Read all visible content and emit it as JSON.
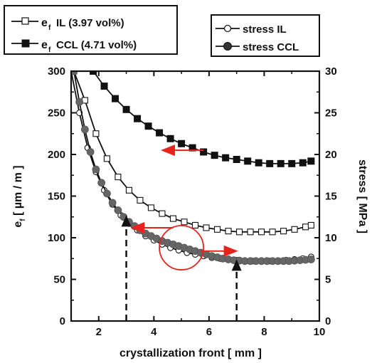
{
  "chart_data": {
    "type": "line",
    "xlabel": "crystallization front  [ mm ]",
    "ylabel_left": "e_f [ µm / m ]",
    "ylabel_right": "stress  [ MPa ]",
    "xlim": [
      1,
      10
    ],
    "ylim_left": [
      0,
      300
    ],
    "ylim_right": [
      0,
      30
    ],
    "xticks": [
      "2",
      "4",
      "6",
      "8",
      "10"
    ],
    "yticks_left": [
      "0",
      "50",
      "100",
      "150",
      "200",
      "250",
      "300"
    ],
    "yticks_right": [
      "0",
      "5",
      "10",
      "15",
      "20",
      "25",
      "30"
    ],
    "legend_left": [
      {
        "key": "ef_il",
        "text": "IL (3.97 vol%)"
      },
      {
        "key": "ef_ccl",
        "text": "CCL (4.71 vol%)"
      }
    ],
    "legend_right": [
      {
        "key": "stress_il",
        "text": "stress IL"
      },
      {
        "key": "stress_ccl",
        "text": "stress CCL"
      }
    ],
    "legend_symbol": {
      "main": "e",
      "sub": "f"
    },
    "series": [
      {
        "key": "ef_ccl",
        "axis": "left",
        "marker": "filled-square",
        "color": "#111111",
        "points": [
          [
            1.8,
            300
          ],
          [
            2.2,
            282
          ],
          [
            2.6,
            267
          ],
          [
            3.0,
            254
          ],
          [
            3.4,
            243
          ],
          [
            3.8,
            234
          ],
          [
            4.2,
            226
          ],
          [
            4.6,
            219
          ],
          [
            5.0,
            213
          ],
          [
            5.4,
            208
          ],
          [
            5.8,
            203
          ],
          [
            6.2,
            199
          ],
          [
            6.6,
            196
          ],
          [
            7.0,
            194
          ],
          [
            7.4,
            192
          ],
          [
            7.8,
            190
          ],
          [
            8.2,
            189
          ],
          [
            8.6,
            189
          ],
          [
            9.0,
            189
          ],
          [
            9.4,
            190
          ],
          [
            9.7,
            192
          ]
        ]
      },
      {
        "key": "ef_il",
        "axis": "left",
        "marker": "open-square",
        "color": "#111111",
        "points": [
          [
            1.1,
            300
          ],
          [
            1.5,
            265
          ],
          [
            1.9,
            225
          ],
          [
            2.3,
            195
          ],
          [
            2.7,
            173
          ],
          [
            3.1,
            157
          ],
          [
            3.5,
            145
          ],
          [
            3.9,
            136
          ],
          [
            4.3,
            129
          ],
          [
            4.7,
            123
          ],
          [
            5.1,
            119
          ],
          [
            5.5,
            115
          ],
          [
            5.9,
            112
          ],
          [
            6.3,
            110
          ],
          [
            6.7,
            108
          ],
          [
            7.1,
            107
          ],
          [
            7.5,
            107
          ],
          [
            7.9,
            107
          ],
          [
            8.3,
            107
          ],
          [
            8.7,
            108
          ],
          [
            9.1,
            110
          ],
          [
            9.5,
            113
          ],
          [
            9.7,
            115
          ]
        ]
      },
      {
        "key": "stress_il",
        "axis": "right",
        "marker": "open-circle",
        "color": "#111111",
        "points": [
          [
            1.0,
            30
          ],
          [
            1.3,
            25
          ],
          [
            1.6,
            20.8
          ],
          [
            1.9,
            17.9
          ],
          [
            2.2,
            15.7
          ],
          [
            2.5,
            14.0
          ],
          [
            2.8,
            12.7
          ],
          [
            3.1,
            11.7
          ],
          [
            3.4,
            10.9
          ],
          [
            3.7,
            10.2
          ],
          [
            4.0,
            9.7
          ],
          [
            4.3,
            9.2
          ],
          [
            4.6,
            8.8
          ],
          [
            4.9,
            8.5
          ],
          [
            5.2,
            8.2
          ],
          [
            5.5,
            8.0
          ],
          [
            5.8,
            7.8
          ],
          [
            6.1,
            7.6
          ],
          [
            6.4,
            7.5
          ],
          [
            6.7,
            7.4
          ],
          [
            7.0,
            7.3
          ],
          [
            7.3,
            7.25
          ],
          [
            7.6,
            7.2
          ],
          [
            7.9,
            7.2
          ],
          [
            8.2,
            7.2
          ],
          [
            8.5,
            7.25
          ],
          [
            8.8,
            7.3
          ],
          [
            9.1,
            7.4
          ],
          [
            9.4,
            7.5
          ],
          [
            9.7,
            7.7
          ]
        ]
      },
      {
        "key": "stress_ccl",
        "axis": "right",
        "marker": "filled-circle",
        "color": "#666666",
        "points": [
          [
            1.1,
            30
          ],
          [
            1.3,
            26.3
          ],
          [
            1.5,
            23.0
          ],
          [
            1.7,
            20.3
          ],
          [
            1.9,
            18.2
          ],
          [
            2.1,
            16.6
          ],
          [
            2.3,
            15.3
          ],
          [
            2.5,
            14.2
          ],
          [
            2.7,
            13.3
          ],
          [
            2.9,
            12.5
          ],
          [
            3.1,
            11.9
          ],
          [
            3.3,
            11.4
          ],
          [
            3.5,
            10.9
          ],
          [
            3.7,
            10.5
          ],
          [
            3.9,
            10.2
          ],
          [
            4.1,
            9.9
          ],
          [
            4.3,
            9.6
          ],
          [
            4.5,
            9.4
          ],
          [
            4.7,
            9.2
          ],
          [
            4.9,
            9.0
          ],
          [
            5.1,
            8.8
          ],
          [
            5.3,
            8.6
          ],
          [
            5.5,
            8.4
          ],
          [
            5.7,
            8.2
          ],
          [
            5.9,
            8.0
          ],
          [
            6.1,
            7.8
          ],
          [
            6.3,
            7.65
          ],
          [
            6.5,
            7.5
          ],
          [
            6.7,
            7.4
          ],
          [
            6.9,
            7.3
          ],
          [
            7.1,
            7.25
          ],
          [
            7.3,
            7.2
          ],
          [
            7.5,
            7.2
          ],
          [
            7.7,
            7.2
          ],
          [
            7.9,
            7.2
          ],
          [
            8.1,
            7.2
          ],
          [
            8.3,
            7.2
          ],
          [
            8.5,
            7.2
          ],
          [
            8.7,
            7.2
          ],
          [
            8.9,
            7.2
          ],
          [
            9.1,
            7.25
          ],
          [
            9.3,
            7.3
          ],
          [
            9.5,
            7.35
          ],
          [
            9.7,
            7.4
          ]
        ]
      }
    ],
    "annotations": {
      "red_arrows": [
        {
          "from": [
            5.8,
            205
          ],
          "to": [
            4.3,
            205
          ]
        },
        {
          "from": [
            4.7,
            112
          ],
          "to": [
            3.2,
            112
          ]
        },
        {
          "from": [
            5.7,
            84
          ],
          "to": [
            7.0,
            84
          ]
        }
      ],
      "red_circle": {
        "center": [
          5.0,
          88
        ],
        "radius_x": 0.8
      },
      "dashed_arrows": [
        {
          "x": 3.0,
          "y_from": 0,
          "y_to": 127
        },
        {
          "x": 7.0,
          "y_from": 0,
          "y_to": 74
        }
      ]
    },
    "grid": false
  }
}
